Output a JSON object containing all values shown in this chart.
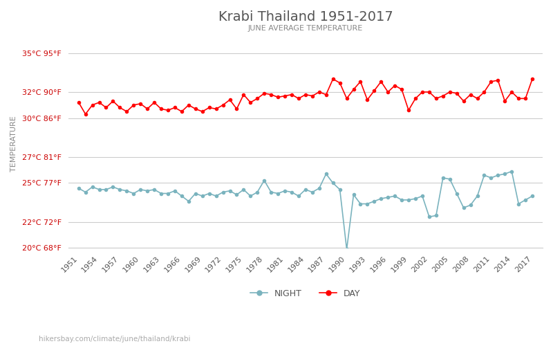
{
  "title": "Krabi Thailand 1951-2017",
  "subtitle": "JUNE AVERAGE TEMPERATURE",
  "ylabel": "TEMPERATURE",
  "watermark": "hikersbay.com/climate/june/thailand/krabi",
  "years": [
    1951,
    1952,
    1953,
    1954,
    1955,
    1956,
    1957,
    1958,
    1959,
    1960,
    1961,
    1962,
    1963,
    1964,
    1965,
    1966,
    1967,
    1968,
    1969,
    1970,
    1971,
    1972,
    1973,
    1974,
    1975,
    1976,
    1977,
    1978,
    1979,
    1980,
    1981,
    1982,
    1983,
    1984,
    1985,
    1986,
    1987,
    1988,
    1989,
    1990,
    1991,
    1992,
    1993,
    1994,
    1995,
    1996,
    1997,
    1998,
    1999,
    2000,
    2001,
    2002,
    2003,
    2004,
    2005,
    2006,
    2007,
    2008,
    2009,
    2010,
    2011,
    2012,
    2013,
    2014,
    2015,
    2016,
    2017
  ],
  "day_temps": [
    31.2,
    30.3,
    31.0,
    31.2,
    30.8,
    31.3,
    30.8,
    30.5,
    31.0,
    31.1,
    30.7,
    31.2,
    30.7,
    30.6,
    30.8,
    30.5,
    31.0,
    30.7,
    30.5,
    30.8,
    30.7,
    31.0,
    31.4,
    30.7,
    31.8,
    31.2,
    31.5,
    31.9,
    31.8,
    31.6,
    31.7,
    31.8,
    31.5,
    31.8,
    31.7,
    32.0,
    31.8,
    33.0,
    32.7,
    31.5,
    32.2,
    32.8,
    31.4,
    32.1,
    32.8,
    32.0,
    32.5,
    32.2,
    30.6,
    31.5,
    32.0,
    32.0,
    31.5,
    31.7,
    32.0,
    31.9,
    31.3,
    31.8,
    31.5,
    32.0,
    32.8,
    32.9,
    31.3,
    32.0,
    31.5,
    31.5,
    33.0
  ],
  "night_temps": [
    24.6,
    24.3,
    24.7,
    24.5,
    24.5,
    24.7,
    24.5,
    24.4,
    24.2,
    24.5,
    24.4,
    24.5,
    24.2,
    24.2,
    24.4,
    24.0,
    23.6,
    24.2,
    24.0,
    24.2,
    24.0,
    24.3,
    24.4,
    24.1,
    24.5,
    24.0,
    24.3,
    25.2,
    24.3,
    24.2,
    24.4,
    24.3,
    24.0,
    24.5,
    24.3,
    24.6,
    25.7,
    25.0,
    24.5,
    19.9,
    24.1,
    23.4,
    23.4,
    23.6,
    23.8,
    23.9,
    24.0,
    23.7,
    23.7,
    23.8,
    24.0,
    22.4,
    22.5,
    25.4,
    25.3,
    24.2,
    23.1,
    23.3,
    24.0,
    25.6,
    25.4,
    25.6,
    25.7,
    25.9,
    23.4,
    23.7,
    24.0
  ],
  "day_color": "#ff0000",
  "night_color": "#7ab3be",
  "day_marker": "o",
  "night_marker": "o",
  "marker_size": 3,
  "line_width": 1.2,
  "bg_color": "#ffffff",
  "grid_color": "#cccccc",
  "title_color": "#555555",
  "subtitle_color": "#888888",
  "ylabel_color": "#888888",
  "tick_color": "#cc0000",
  "ylim": [
    20,
    36
  ],
  "yticks_c": [
    20,
    22,
    25,
    27,
    30,
    32,
    35
  ],
  "yticks_f": [
    68,
    72,
    77,
    81,
    86,
    90,
    95
  ],
  "xtick_years": [
    1951,
    1954,
    1957,
    1960,
    1963,
    1966,
    1969,
    1972,
    1975,
    1978,
    1981,
    1984,
    1987,
    1990,
    1993,
    1996,
    1999,
    2002,
    2005,
    2008,
    2011,
    2014,
    2017
  ]
}
